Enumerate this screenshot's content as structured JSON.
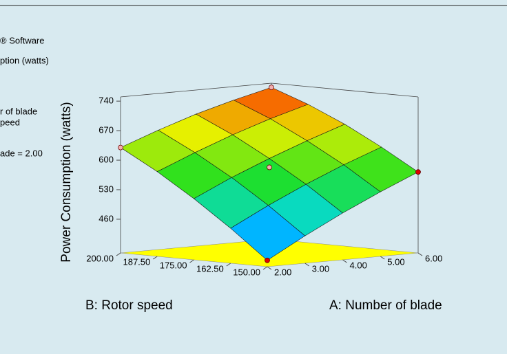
{
  "chart_data": {
    "type": "surface",
    "annotations": [
      "® Software",
      "ption (watts)",
      "r of blade",
      "peed",
      "ade = 2.00"
    ],
    "x_label": "A: Number of blade",
    "y_label": "B: Rotor speed",
    "z_label": "Power Consumption (watts)",
    "x": [
      2,
      3,
      4,
      5,
      6
    ],
    "y": [
      150,
      162.5,
      175,
      187.5,
      200
    ],
    "z": [
      [
        395,
        445,
        491,
        533,
        572
      ],
      [
        463,
        509,
        551,
        589,
        623
      ],
      [
        525,
        567,
        604,
        638,
        669
      ],
      [
        581,
        618,
        652,
        682,
        708
      ],
      [
        630,
        663,
        693,
        718,
        740
      ]
    ],
    "xlim": [
      2,
      6
    ],
    "ylim": [
      150,
      200
    ],
    "zlim": [
      380,
      750
    ],
    "xticks": [
      {
        "value": 2,
        "label": "2.00"
      },
      {
        "value": 3,
        "label": "3.00"
      },
      {
        "value": 4,
        "label": "4.00"
      },
      {
        "value": 5,
        "label": "5.00"
      },
      {
        "value": 6,
        "label": "6.00"
      }
    ],
    "yticks": [
      {
        "value": 150,
        "label": "150.00"
      },
      {
        "value": 162.5,
        "label": "162.50"
      },
      {
        "value": 175,
        "label": "175.00"
      },
      {
        "value": 187.5,
        "label": "187.50"
      },
      {
        "value": 200,
        "label": "200.00"
      }
    ],
    "zticks": [
      460,
      530,
      600,
      670,
      740
    ],
    "colormap": [
      "#0030ff",
      "#00d8ff",
      "#20e020",
      "#e8f000",
      "#ff1000"
    ],
    "floor_color": "#ffff00",
    "points": {
      "x": [
        2,
        6,
        2,
        6,
        4
      ],
      "y": [
        150,
        150,
        200,
        200,
        175
      ],
      "z": [
        395,
        572,
        630,
        740,
        583
      ],
      "colors": [
        "#e00000",
        "#e00000",
        "#f4b0b0",
        "#f4b0b0",
        "#f4b0b0"
      ]
    }
  }
}
